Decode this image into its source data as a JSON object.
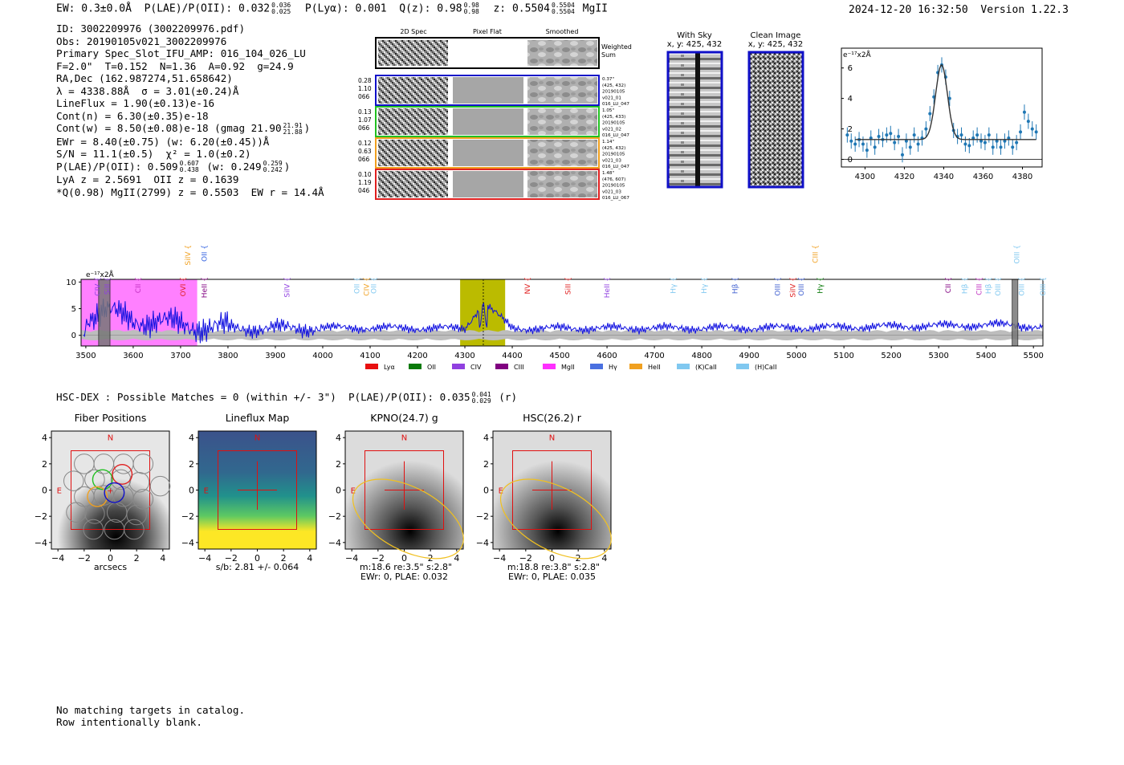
{
  "header": {
    "ew": "EW: 0.3±0.0Å",
    "plae": "P(LAE)/P(OII): 0.032",
    "plae_hi": "0.036",
    "plae_lo": "0.025",
    "plya": "P(Lyα): 0.001",
    "qz": "Q(z): 0.98",
    "qz_hi": "0.98",
    "qz_lo": "0.98",
    "z": "z: 0.5504",
    "z_hi": "0.5504",
    "z_lo": "0.5504",
    "line": "MgII",
    "timestamp": "2024-12-20 16:32:50",
    "version": "Version 1.22.3"
  },
  "info": {
    "id": "ID: 3002209976 (3002209976.pdf)",
    "obs": "Obs: 20190105v021_3002209976",
    "primary": "Primary Spec_Slot_IFU_AMP: 016_104_026_LU",
    "fparams": "F=2.0\"  T=0.152  N=1.36  A=0.92  g=24.9",
    "radec": "RA,Dec (162.987274,51.658642)",
    "lambda": "λ = 4338.88Å  σ = 3.01(±0.24)Å",
    "lineflux": "LineFlux = 1.90(±0.13)e-16",
    "contn": "Cont(n) = 6.30(±0.35)e-18",
    "contw": "Cont(w) = 8.50(±0.08)e-18 (gmag 21.90",
    "contw_hi": "21.91",
    "contw_lo": "21.88",
    "ewr": "EWr = 8.40(±0.75) (w: 6.20(±0.45))Å",
    "sn": "S/N = 11.1(±0.5)  χ² = 1.0(±0.2)",
    "plae2": "P(LAE)/P(OII): 0.509",
    "plae2_hi": "0.607",
    "plae2_lo": "0.438",
    "plae2_w": "(w: 0.249",
    "plae2_w_hi": "0.259",
    "plae2_w_lo": "0.242",
    "lya": "LyA z = 2.5691  OII z = 0.1639",
    "q": "*Q(0.98) MgII(2799) z = 0.5503  EW r = 14.4Å"
  },
  "cutouts": {
    "col_2d": "2D Spec",
    "col_flat": "Pixel Flat",
    "col_smooth": "Smoothed",
    "weighted": [
      "Weighted",
      "Sum"
    ],
    "rows": [
      {
        "left": [
          "0.28",
          "1.10",
          "066"
        ],
        "right": [
          "0.37\"",
          "(425, 432)",
          "20190105",
          "v021_01",
          "016_LU_047"
        ],
        "color": "#1010c8"
      },
      {
        "left": [
          "0.13",
          "1.07",
          "066"
        ],
        "right": [
          "1.05\"",
          "(425, 433)",
          "20190105",
          "v021_02",
          "016_LU_047"
        ],
        "color": "#22c022"
      },
      {
        "left": [
          "0.12",
          "0.63",
          "066"
        ],
        "right": [
          "1.14\"",
          "(425, 432)",
          "20190105",
          "v021_03",
          "016_LU_047"
        ],
        "color": "#f0a020"
      },
      {
        "left": [
          "0.10",
          "1.19",
          "046"
        ],
        "right": [
          "1.48\"",
          "(476, 607)",
          "20190105",
          "v021_03",
          "016_LU_067"
        ],
        "color": "#e02020"
      }
    ]
  },
  "sky": {
    "with_sky": "With Sky",
    "with_sky_xy": "x, y: 425, 432",
    "clean": "Clean Image",
    "clean_xy": "x, y: 425, 432"
  },
  "hsc": {
    "line": "HSC-DEX : Possible Matches = 0 (within +/- 3\")  P(LAE)/P(OII): 0.035",
    "hi": "0.041",
    "lo": "0.029",
    "band": "(r)"
  },
  "panels": [
    {
      "title": "Fiber Positions",
      "caption": [
        "arcsecs"
      ]
    },
    {
      "title": "Lineflux Map",
      "caption": [
        "s/b: 2.81 +/- 0.064"
      ]
    },
    {
      "title": "KPNO(24.7) g",
      "caption": [
        "m:18.6  re:3.5\"  s:2.8\"",
        "EWr: 0, PLAE: 0.032"
      ]
    },
    {
      "title": "HSC(26.2) r",
      "caption": [
        "m:18.8  re:3.8\"  s:2.8\"",
        "EWr: 0, PLAE: 0.035"
      ]
    }
  ],
  "panel_ticks": [
    "−4",
    "−2",
    "0",
    "2",
    "4"
  ],
  "compass": {
    "n": "N",
    "e": "E"
  },
  "footer": [
    "No matching targets in catalog.",
    "Row intentionally blank."
  ],
  "chart_data": [
    {
      "type": "line",
      "name": "emission-line-zoom",
      "ylabel": "e⁻¹⁷x2Å",
      "xlim": [
        4288,
        4390
      ],
      "ylim": [
        -0.5,
        7.3
      ],
      "xticks": [
        4300,
        4320,
        4340,
        4360,
        4380
      ],
      "yticks": [
        0,
        2,
        4,
        6
      ],
      "fit": {
        "center": 4338.9,
        "sigma": 3.0,
        "amplitude": 4.9,
        "continuum": 1.3
      },
      "points": [
        [
          4291,
          1.6,
          0.5
        ],
        [
          4293,
          1.2,
          0.5
        ],
        [
          4295,
          1.0,
          0.5
        ],
        [
          4297,
          1.3,
          0.5
        ],
        [
          4299,
          1.0,
          0.5
        ],
        [
          4301,
          0.6,
          0.5
        ],
        [
          4303,
          1.4,
          0.5
        ],
        [
          4305,
          0.8,
          0.5
        ],
        [
          4307,
          1.5,
          0.5
        ],
        [
          4309,
          1.3,
          0.5
        ],
        [
          4311,
          1.6,
          0.5
        ],
        [
          4313,
          1.7,
          0.5
        ],
        [
          4315,
          1.1,
          0.5
        ],
        [
          4317,
          1.5,
          0.5
        ],
        [
          4319,
          0.3,
          0.5
        ],
        [
          4321,
          1.2,
          0.5
        ],
        [
          4323,
          0.8,
          0.5
        ],
        [
          4325,
          1.6,
          0.5
        ],
        [
          4327,
          1.0,
          0.5
        ],
        [
          4329,
          1.4,
          0.5
        ],
        [
          4331,
          2.0,
          0.5
        ],
        [
          4333,
          3.0,
          0.5
        ],
        [
          4335,
          4.1,
          0.5
        ],
        [
          4337,
          5.7,
          0.5
        ],
        [
          4339,
          6.2,
          0.5
        ],
        [
          4341,
          5.4,
          0.5
        ],
        [
          4343,
          4.0,
          0.5
        ],
        [
          4345,
          1.9,
          0.5
        ],
        [
          4347,
          1.5,
          0.5
        ],
        [
          4349,
          1.6,
          0.5
        ],
        [
          4351,
          1.0,
          0.5
        ],
        [
          4353,
          0.9,
          0.5
        ],
        [
          4355,
          1.4,
          0.5
        ],
        [
          4357,
          1.6,
          0.5
        ],
        [
          4359,
          1.2,
          0.5
        ],
        [
          4361,
          1.1,
          0.5
        ],
        [
          4363,
          1.6,
          0.5
        ],
        [
          4365,
          0.8,
          0.5
        ],
        [
          4367,
          1.2,
          0.5
        ],
        [
          4369,
          0.8,
          0.5
        ],
        [
          4371,
          1.2,
          0.5
        ],
        [
          4373,
          1.4,
          0.5
        ],
        [
          4375,
          0.8,
          0.5
        ],
        [
          4377,
          1.1,
          0.5
        ],
        [
          4379,
          1.8,
          0.5
        ],
        [
          4381,
          3.1,
          0.5
        ],
        [
          4383,
          2.5,
          0.5
        ],
        [
          4385,
          2.0,
          0.5
        ],
        [
          4387,
          1.8,
          0.5
        ]
      ]
    },
    {
      "type": "line",
      "name": "full-spectrum",
      "ylabel": "e⁻¹⁷x2Å",
      "xlim": [
        3490,
        5520
      ],
      "ylim": [
        -2,
        10.5
      ],
      "xticks": [
        3500,
        3600,
        3700,
        3800,
        3900,
        4000,
        4100,
        4200,
        4300,
        4400,
        4500,
        4600,
        4700,
        4800,
        4900,
        5000,
        5100,
        5200,
        5300,
        5400,
        5500
      ],
      "yticks": [
        0,
        5,
        10
      ],
      "highlight_regions": [
        {
          "label": "MgII-window",
          "x": [
            3490,
            3735
          ],
          "color": "#ff80ff"
        },
        {
          "label": "line-window",
          "x": [
            4290,
            4385
          ],
          "color": "#bbbb00"
        }
      ],
      "masked_regions": [
        [
          3527,
          3551
        ],
        [
          5455,
          5467
        ]
      ],
      "marked_wavelength": 4338.9,
      "flux_anchors": [
        [
          3500,
          3.5
        ],
        [
          3540,
          4.5
        ],
        [
          3600,
          3.0
        ],
        [
          3700,
          2.0
        ],
        [
          3800,
          1.3
        ],
        [
          3900,
          1.3
        ],
        [
          4000,
          1.4
        ],
        [
          4300,
          1.3
        ],
        [
          4338.9,
          6.2
        ],
        [
          4400,
          1.3
        ],
        [
          5000,
          1.4
        ],
        [
          5460,
          2.0
        ],
        [
          5520,
          1.4
        ]
      ],
      "legend": [
        {
          "label": "Lyα",
          "color": "#e81010"
        },
        {
          "label": "OII",
          "color": "#0a7a0a"
        },
        {
          "label": "CIV",
          "color": "#9040e0"
        },
        {
          "label": "CIII",
          "color": "#800080"
        },
        {
          "label": "MgII",
          "color": "#ff30ff"
        },
        {
          "label": "Hγ",
          "color": "#4a70e0"
        },
        {
          "label": "HeII",
          "color": "#f0a020"
        },
        {
          "label": "(K)CaII",
          "color": "#80c8f0"
        },
        {
          "label": "(H)CaII",
          "color": "#80c8f0"
        }
      ],
      "line_labels_top": [
        {
          "label": "SiIV",
          "wl": 3715,
          "color": "#f0a020"
        },
        {
          "label": "OII",
          "wl": 3750,
          "color": "#3060e0"
        },
        {
          "label": "CIII",
          "wl": 5040,
          "color": "#f0a020"
        },
        {
          "label": "OIII",
          "wl": 5465,
          "color": "#80c8f0"
        }
      ],
      "line_labels": [
        {
          "label": "CIV",
          "wl": 3525,
          "color": "#9040e0"
        },
        {
          "label": "SiII",
          "wl": 3545,
          "color": "#9040e0"
        },
        {
          "label": "CII",
          "wl": 3610,
          "color": "#c030c0"
        },
        {
          "label": "OVI",
          "wl": 3705,
          "color": "#e02020"
        },
        {
          "label": "HeII",
          "wl": 3750,
          "color": "#800080"
        },
        {
          "label": "SiIV",
          "wl": 3925,
          "color": "#9040e0"
        },
        {
          "label": "OII",
          "wl": 4072,
          "color": "#80c8f0"
        },
        {
          "label": "CIV",
          "wl": 4092,
          "color": "#f0a020"
        },
        {
          "label": "OII",
          "wl": 4108,
          "color": "#80c8f0"
        },
        {
          "label": "NV",
          "wl": 4432,
          "color": "#e02020"
        },
        {
          "label": "SiII",
          "wl": 4518,
          "color": "#e02020"
        },
        {
          "label": "HeII",
          "wl": 4600,
          "color": "#9040e0"
        },
        {
          "label": "Hγ",
          "wl": 4740,
          "color": "#80c8f0"
        },
        {
          "label": "Hγ",
          "wl": 4805,
          "color": "#80c8f0"
        },
        {
          "label": "Hβ",
          "wl": 4870,
          "color": "#4060d0"
        },
        {
          "label": "OIII",
          "wl": 4960,
          "color": "#4060d0"
        },
        {
          "label": "SiIV",
          "wl": 4992,
          "color": "#e02020"
        },
        {
          "label": "OIII",
          "wl": 5010,
          "color": "#4060d0"
        },
        {
          "label": "Hγ",
          "wl": 5050,
          "color": "#0a7a0a"
        },
        {
          "label": "CII",
          "wl": 5320,
          "color": "#800080"
        },
        {
          "label": "Hβ",
          "wl": 5355,
          "color": "#80c8f0"
        },
        {
          "label": "CIII",
          "wl": 5385,
          "color": "#c030c0"
        },
        {
          "label": "Hβ",
          "wl": 5405,
          "color": "#80c8f0"
        },
        {
          "label": "OIII",
          "wl": 5425,
          "color": "#80c8f0"
        },
        {
          "label": "OIII",
          "wl": 5475,
          "color": "#80c8f0"
        },
        {
          "label": "OIII",
          "wl": 5520,
          "color": "#80c8f0"
        }
      ]
    }
  ]
}
